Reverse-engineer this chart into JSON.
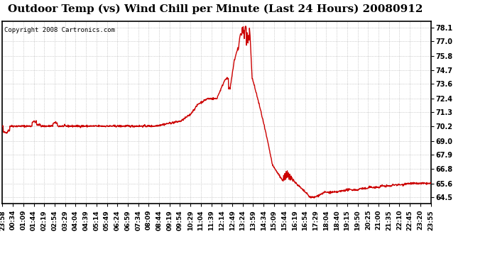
{
  "title": "Outdoor Temp (vs) Wind Chill per Minute (Last 24 Hours) 20080912",
  "copyright": "Copyright 2008 Cartronics.com",
  "line_color": "#cc0000",
  "bg_color": "#ffffff",
  "plot_bg_color": "#ffffff",
  "grid_color": "#aaaaaa",
  "yticks": [
    64.5,
    65.6,
    66.8,
    67.9,
    69.0,
    70.2,
    71.3,
    72.4,
    73.6,
    74.7,
    75.8,
    77.0,
    78.1
  ],
  "ymin": 64.0,
  "ymax": 78.6,
  "xtick_labels": [
    "23:58",
    "00:34",
    "01:09",
    "01:44",
    "02:19",
    "02:54",
    "03:29",
    "04:04",
    "04:39",
    "05:14",
    "05:49",
    "06:24",
    "06:59",
    "07:34",
    "08:09",
    "08:44",
    "09:19",
    "09:54",
    "10:29",
    "11:04",
    "11:39",
    "12:14",
    "12:49",
    "13:24",
    "13:59",
    "14:34",
    "15:09",
    "15:44",
    "16:19",
    "16:54",
    "17:29",
    "18:04",
    "18:40",
    "19:15",
    "19:50",
    "20:25",
    "21:00",
    "21:35",
    "22:10",
    "22:45",
    "23:20",
    "23:55"
  ],
  "title_fontsize": 11,
  "copyright_fontsize": 6.5,
  "tick_fontsize": 6.5,
  "ytick_fontsize": 7,
  "line_width": 1.0
}
